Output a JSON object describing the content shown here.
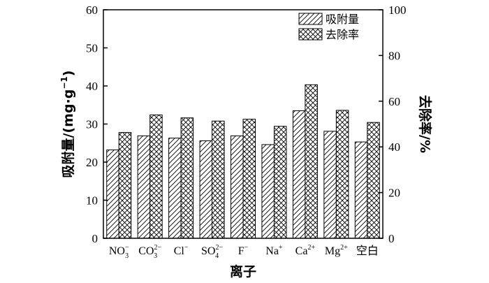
{
  "chart_data": {
    "type": "bar",
    "title": "",
    "categories": [
      "NO3−",
      "CO32−",
      "Cl−",
      "SO42−",
      "F−",
      "Na+",
      "Ca2+",
      "Mg2+",
      "空白"
    ],
    "category_labels": [
      {
        "base": "NO",
        "sub": "3",
        "sup": "−"
      },
      {
        "base": "CO",
        "sub": "3",
        "sup": "2−"
      },
      {
        "base": "Cl",
        "sub": "",
        "sup": "−"
      },
      {
        "base": "SO",
        "sub": "4",
        "sup": "2−"
      },
      {
        "base": "F",
        "sub": "",
        "sup": "−"
      },
      {
        "base": "Na",
        "sub": "",
        "sup": "+"
      },
      {
        "base": "Ca",
        "sub": "",
        "sup": "2+"
      },
      {
        "base": "Mg",
        "sub": "",
        "sup": "2+"
      },
      {
        "base": "空白",
        "sub": "",
        "sup": ""
      }
    ],
    "xlabel": "离子",
    "ylabel": "吸附量/(mg·g−1)",
    "y2label": "去除率/%",
    "ylim": [
      0,
      60
    ],
    "y2lim": [
      0,
      100
    ],
    "yticks": [
      0,
      10,
      20,
      30,
      40,
      50,
      60
    ],
    "y2ticks": [
      0,
      20,
      40,
      60,
      80,
      100
    ],
    "legend_position": "top-right",
    "series": [
      {
        "name": "吸附量",
        "axis": "left",
        "pattern": "hatch-diagonal",
        "values": [
          23.2,
          26.9,
          26.3,
          25.6,
          26.9,
          24.6,
          33.5,
          28.1,
          25.3
        ]
      },
      {
        "name": "去除率",
        "axis": "right",
        "pattern": "hatch-cross",
        "values": [
          46.3,
          54.0,
          52.7,
          51.3,
          52.1,
          49.0,
          67.2,
          56.0,
          50.7
        ]
      }
    ]
  }
}
